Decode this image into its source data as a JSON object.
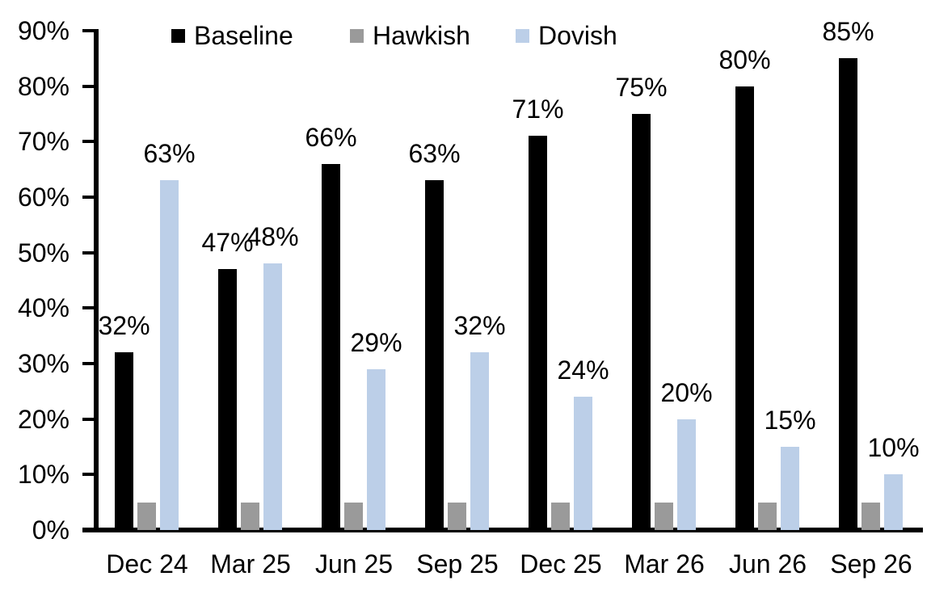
{
  "chart_data": {
    "type": "bar",
    "title": "",
    "xlabel": "",
    "ylabel": "",
    "categories": [
      "Dec 24",
      "Mar 25",
      "Jun 25",
      "Sep 25",
      "Dec 25",
      "Mar 26",
      "Jun 26",
      "Sep 26"
    ],
    "series": [
      {
        "name": "Baseline",
        "color": "#000000",
        "values": [
          32,
          47,
          66,
          63,
          71,
          75,
          80,
          85
        ],
        "labels": [
          "32%",
          "47%",
          "66%",
          "63%",
          "71%",
          "75%",
          "80%",
          "85%"
        ]
      },
      {
        "name": "Hawkish",
        "color": "#9A9A9A",
        "values": [
          5,
          5,
          5,
          5,
          5,
          5,
          5,
          5
        ],
        "labels": null
      },
      {
        "name": "Dovish",
        "color": "#BCCFE8",
        "values": [
          63,
          48,
          29,
          32,
          24,
          20,
          15,
          10
        ],
        "labels": [
          "63%",
          "48%",
          "29%",
          "32%",
          "24%",
          "20%",
          "15%",
          "10%"
        ]
      }
    ],
    "y_axis": {
      "min": 0,
      "max": 90,
      "tick_step": 10,
      "tick_labels": [
        "0%",
        "10%",
        "20%",
        "30%",
        "40%",
        "50%",
        "60%",
        "70%",
        "80%",
        "90%"
      ]
    },
    "legend": {
      "position": "top",
      "entries": [
        "Baseline",
        "Hawkish",
        "Dovish"
      ]
    },
    "grid": false
  }
}
